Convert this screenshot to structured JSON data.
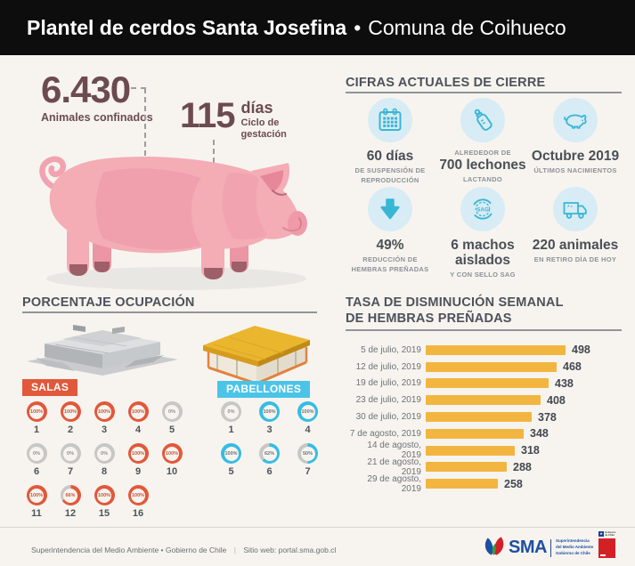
{
  "header": {
    "title_bold": "Plantel de cerdos Santa Josefina",
    "separator": "•",
    "title_regular": "Comuna de Coihueco"
  },
  "hero": {
    "stat1": {
      "value": "6.430",
      "label": "Animales confinados"
    },
    "stat2": {
      "value": "115",
      "unit": "días",
      "label": "Ciclo de gestación"
    }
  },
  "cifras": {
    "title": "CIFRAS ACTUALES DE CIERRE",
    "sag_seal_text": "SAG",
    "items": [
      {
        "icon": "calendar-icon",
        "pre": "",
        "value": "60 días",
        "sub": "DE SUSPENSIÓN DE REPRODUCCIÓN"
      },
      {
        "icon": "bottle-icon",
        "pre": "ALREDEDOR DE",
        "value": "700 lechones",
        "sub": "LACTANDO"
      },
      {
        "icon": "pig-icon",
        "pre": "",
        "value": "Octubre 2019",
        "sub": "ÚLTIMOS NACIMIENTOS"
      },
      {
        "icon": "arrow-down-icon",
        "pre": "",
        "value": "49%",
        "sub": "REDUCCIÓN DE HEMBRAS PREÑADAS"
      },
      {
        "icon": "sag-seal-icon",
        "pre": "",
        "value": "6 machos aislados",
        "sub": "Y CON SELLO SAG"
      },
      {
        "icon": "truck-icon",
        "pre": "",
        "value": "220 animales",
        "sub": "EN RETIRO DÍA DE HOY"
      }
    ]
  },
  "ocupacion": {
    "title": "PORCENTAJE OCUPACIÓN",
    "groups": [
      {
        "label": "SALAS",
        "badge_color": "#e2583b",
        "ring_color": "#e2583b",
        "text_color": "#c2573b",
        "items": [
          {
            "num": "1",
            "pct": 100
          },
          {
            "num": "2",
            "pct": 100
          },
          {
            "num": "3",
            "pct": 100
          },
          {
            "num": "4",
            "pct": 100
          },
          {
            "num": "5",
            "pct": 0
          },
          {
            "num": "6",
            "pct": 0
          },
          {
            "num": "7",
            "pct": 0
          },
          {
            "num": "8",
            "pct": 0
          },
          {
            "num": "9",
            "pct": 100
          },
          {
            "num": "10",
            "pct": 100
          },
          {
            "num": "11",
            "pct": 100
          },
          {
            "num": "12",
            "pct": 66
          },
          {
            "num": "15",
            "pct": 100
          },
          {
            "num": "16",
            "pct": 100
          }
        ]
      },
      {
        "label": "PABELLONES",
        "badge_color": "#4cc4e8",
        "ring_color": "#35bce5",
        "text_color": "#6f747a",
        "items": [
          {
            "num": "1",
            "pct": 0
          },
          {
            "num": "3",
            "pct": 100
          },
          {
            "num": "4",
            "pct": 100
          },
          {
            "num": "5",
            "pct": 100
          },
          {
            "num": "6",
            "pct": 62
          },
          {
            "num": "7",
            "pct": 50
          }
        ]
      }
    ]
  },
  "chart": {
    "title_line1": "TASA DE DISMINUCIÓN SEMANAL",
    "title_line2": "DE HEMBRAS PREÑADAS"
  },
  "chart_data": {
    "type": "bar",
    "orientation": "horizontal",
    "title": "TASA DE DISMINUCIÓN SEMANAL DE HEMBRAS PREÑADAS",
    "categories": [
      "5 de julio, 2019",
      "12 de julio, 2019",
      "19 de julio, 2019",
      "23 de julio, 2019",
      "30 de julio, 2019",
      "7 de agosto, 2019",
      "14 de agosto, 2019",
      "21 de agosto, 2019",
      "29 de agosto, 2019"
    ],
    "values": [
      498,
      468,
      438,
      408,
      378,
      348,
      318,
      288,
      258
    ],
    "bar_color": "#f2b540",
    "value_labels": true,
    "grid": false,
    "legend": false
  },
  "footer": {
    "left_text": "Superintendencia del Medio Ambiente • Gobierno de Chile",
    "divider": "|",
    "site_text": "Sitio web: portal.sma.gob.cl",
    "sma_logo": {
      "text": "SMA",
      "tagline": [
        "Superintendencia",
        "del Medio Ambiente",
        "Gobierno de Chile"
      ]
    },
    "gov_logo": {
      "text": "Gobierno de Chile"
    }
  },
  "colors": {
    "header_bg": "#0d0d0d",
    "page_bg": "#f7f4ef",
    "number_brown": "#6c4b50",
    "teal_icon": "#39b6d4",
    "icon_circle_bg": "#d7ecf5",
    "accent_orange": "#e2583b",
    "accent_blue": "#4cc4e8",
    "bar_yellow": "#f2b540",
    "heading_gray": "#4d525b",
    "sub_gray": "#8d9199"
  }
}
